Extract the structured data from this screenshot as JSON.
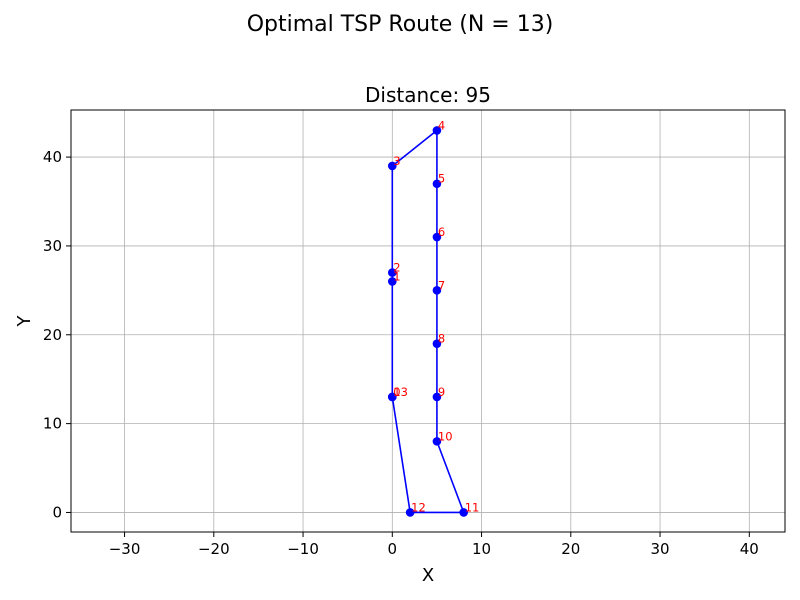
{
  "figure": {
    "suptitle": "Optimal TSP Route (N = 13)"
  },
  "chart_data": {
    "type": "line",
    "title": "Distance: 95",
    "xlabel": "X",
    "ylabel": "Y",
    "xlim": [
      -36,
      44
    ],
    "ylim": [
      -2.2,
      45.3
    ],
    "xticks": [
      -30,
      -20,
      -10,
      0,
      10,
      20,
      30,
      40
    ],
    "xtick_labels": [
      "−30",
      "−20",
      "−10",
      "0",
      "10",
      "20",
      "30",
      "40"
    ],
    "yticks": [
      0,
      10,
      20,
      30,
      40
    ],
    "ytick_labels": [
      "0",
      "10",
      "20",
      "30",
      "40"
    ],
    "grid": true,
    "line_color": "#0000ff",
    "marker_color": "#0000ff",
    "label_color": "#ff0000",
    "points": [
      {
        "label": "0",
        "x": 0,
        "y": 13
      },
      {
        "label": "1",
        "x": 0,
        "y": 26
      },
      {
        "label": "2",
        "x": 0,
        "y": 27
      },
      {
        "label": "3",
        "x": 0,
        "y": 39
      },
      {
        "label": "4",
        "x": 5,
        "y": 43
      },
      {
        "label": "5",
        "x": 5,
        "y": 37
      },
      {
        "label": "6",
        "x": 5,
        "y": 31
      },
      {
        "label": "7",
        "x": 5,
        "y": 25
      },
      {
        "label": "8",
        "x": 5,
        "y": 19
      },
      {
        "label": "9",
        "x": 5,
        "y": 13
      },
      {
        "label": "10",
        "x": 5,
        "y": 8
      },
      {
        "label": "11",
        "x": 8,
        "y": 0
      },
      {
        "label": "12",
        "x": 2,
        "y": 0
      },
      {
        "label": "13",
        "x": 0,
        "y": 13
      }
    ]
  }
}
